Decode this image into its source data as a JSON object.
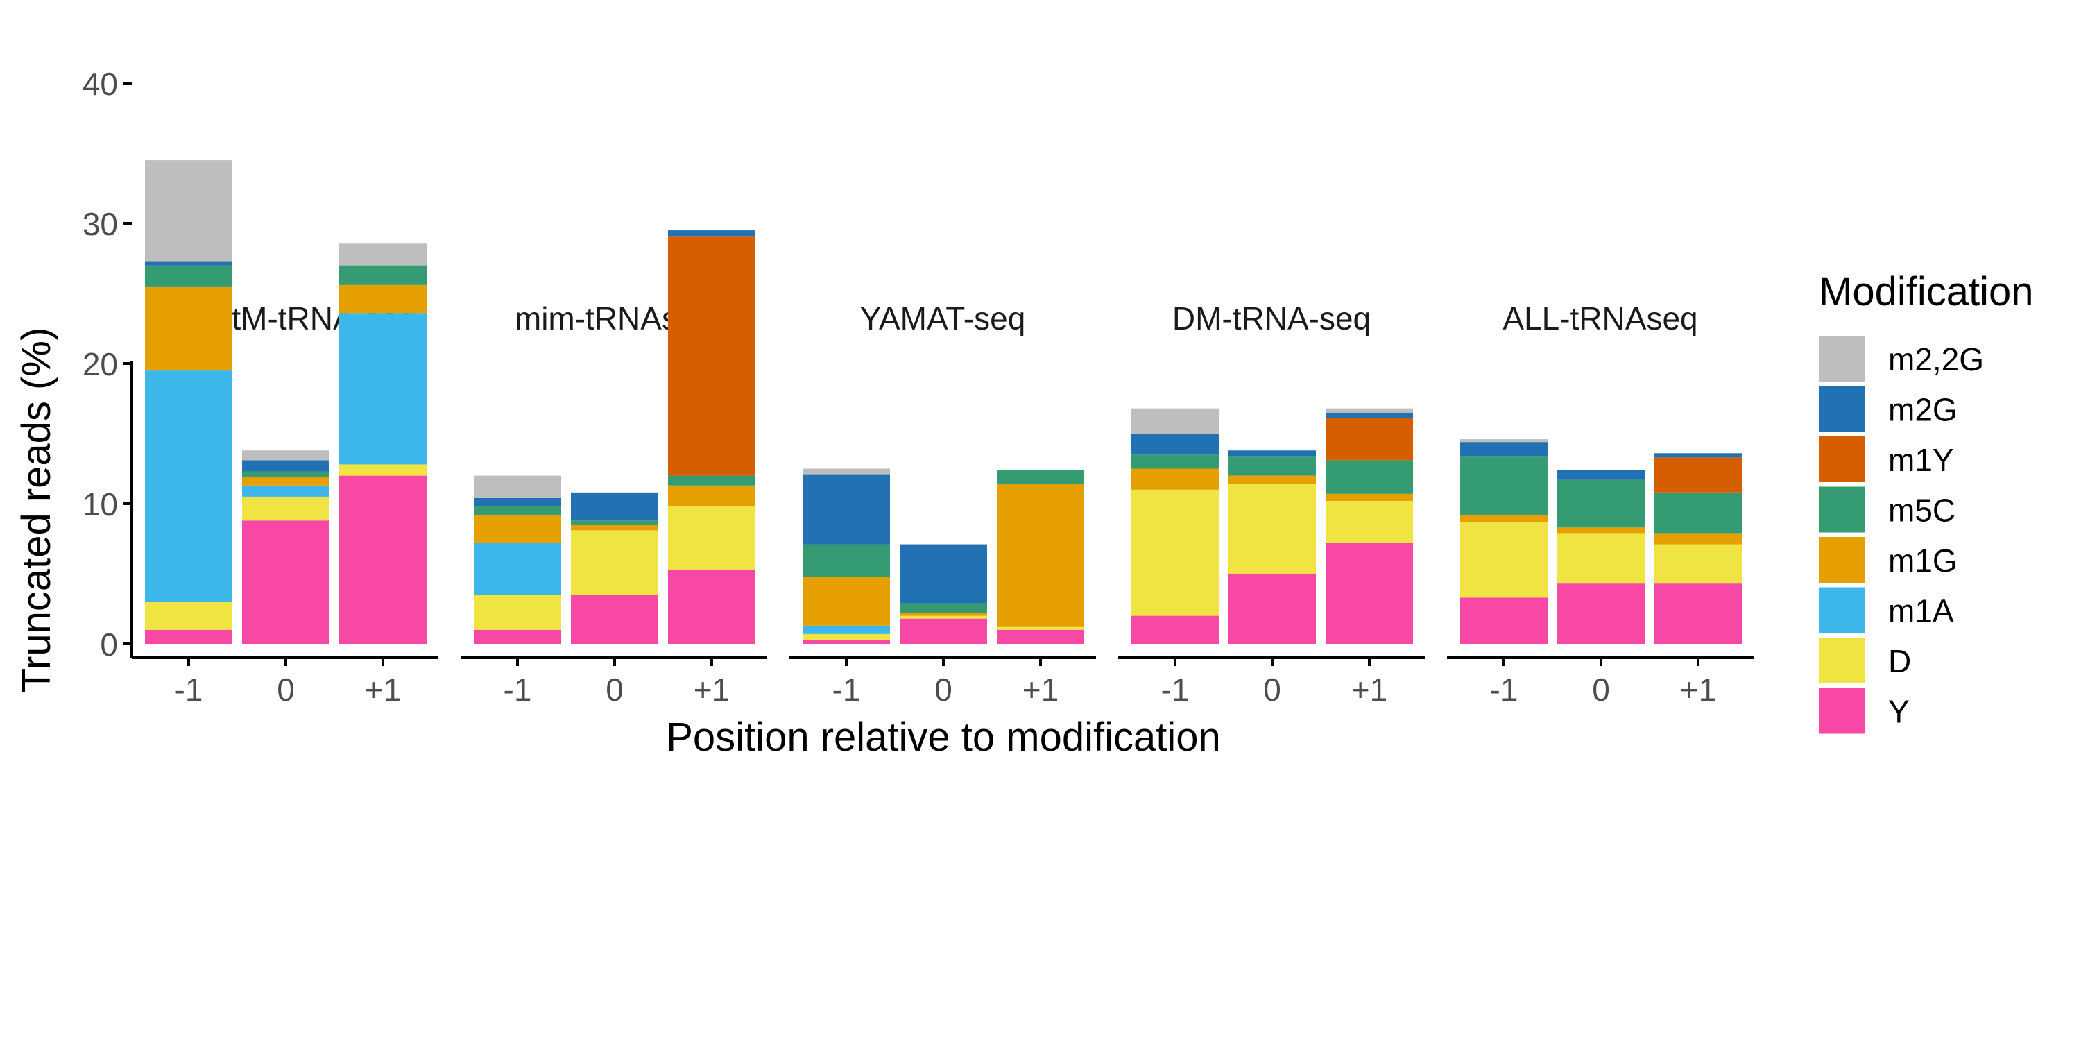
{
  "chart_data": {
    "type": "bar",
    "stacked": true,
    "faceted": true,
    "xlabel": "Position relative to modification",
    "ylabel": "Truncated reads (%)",
    "ylim": [
      0,
      40
    ],
    "yticks": [
      0,
      10,
      20,
      30,
      40
    ],
    "categories": [
      "-1",
      "0",
      "+1"
    ],
    "grid": false,
    "legend": {
      "title": "Modification",
      "placement": "right",
      "entries": [
        "m2,2G",
        "m2G",
        "m1Y",
        "m5C",
        "m1G",
        "m1A",
        "D",
        "Y"
      ]
    },
    "colors": {
      "m2,2G": "#BEBEBE",
      "m2G": "#2271B2",
      "m1Y": "#D55E00",
      "m5C": "#359B73",
      "m1G": "#E69F00",
      "m1A": "#3DB7E9",
      "D": "#F0E442",
      "Y": "#F748A5"
    },
    "stack_order": [
      "Y",
      "D",
      "m1A",
      "m1G",
      "m5C",
      "m1Y",
      "m2G",
      "m2,2G"
    ],
    "panels": [
      {
        "title": "QuantM-tRNA-seq",
        "bars": [
          {
            "category": "-1",
            "values": {
              "Y": 1.0,
              "D": 2.0,
              "m1A": 16.5,
              "m1G": 6.0,
              "m5C": 1.5,
              "m1Y": 0.0,
              "m2G": 0.3,
              "m2,2G": 7.2
            }
          },
          {
            "category": "0",
            "values": {
              "Y": 8.8,
              "D": 1.7,
              "m1A": 0.8,
              "m1G": 0.6,
              "m5C": 0.4,
              "m1Y": 0.0,
              "m2G": 0.8,
              "m2,2G": 0.7
            }
          },
          {
            "category": "+1",
            "values": {
              "Y": 12.0,
              "D": 0.8,
              "m1A": 10.8,
              "m1G": 2.0,
              "m5C": 1.4,
              "m1Y": 0.0,
              "m2G": 0.0,
              "m2,2G": 1.6
            }
          }
        ]
      },
      {
        "title": "mim-tRNAseq",
        "bars": [
          {
            "category": "-1",
            "values": {
              "Y": 1.0,
              "D": 2.5,
              "m1A": 3.7,
              "m1G": 2.0,
              "m5C": 0.6,
              "m1Y": 0.0,
              "m2G": 0.6,
              "m2,2G": 1.6
            }
          },
          {
            "category": "0",
            "values": {
              "Y": 3.5,
              "D": 4.6,
              "m1A": 0.0,
              "m1G": 0.4,
              "m5C": 0.3,
              "m1Y": 0.0,
              "m2G": 2.0,
              "m2,2G": 0.0
            }
          },
          {
            "category": "+1",
            "values": {
              "Y": 5.3,
              "D": 4.5,
              "m1A": 0.0,
              "m1G": 1.5,
              "m5C": 0.7,
              "m1Y": 17.1,
              "m2G": 0.4,
              "m2,2G": 0.0
            }
          }
        ]
      },
      {
        "title": "YAMAT-seq",
        "bars": [
          {
            "category": "-1",
            "values": {
              "Y": 0.3,
              "D": 0.4,
              "m1A": 0.6,
              "m1G": 3.5,
              "m5C": 2.3,
              "m1Y": 0.0,
              "m2G": 5.0,
              "m2,2G": 0.4
            }
          },
          {
            "category": "0",
            "values": {
              "Y": 1.8,
              "D": 0.2,
              "m1A": 0.0,
              "m1G": 0.2,
              "m5C": 0.7,
              "m1Y": 0.0,
              "m2G": 4.2,
              "m2,2G": 0.0
            }
          },
          {
            "category": "+1",
            "values": {
              "Y": 1.0,
              "D": 0.2,
              "m1A": 0.0,
              "m1G": 10.2,
              "m5C": 1.0,
              "m1Y": 0.0,
              "m2G": 0.0,
              "m2,2G": 0.0
            }
          }
        ]
      },
      {
        "title": "DM-tRNA-seq",
        "bars": [
          {
            "category": "-1",
            "values": {
              "Y": 2.0,
              "D": 9.0,
              "m1A": 0.0,
              "m1G": 1.5,
              "m5C": 1.0,
              "m1Y": 0.0,
              "m2G": 1.5,
              "m2,2G": 1.8
            }
          },
          {
            "category": "0",
            "values": {
              "Y": 5.0,
              "D": 6.4,
              "m1A": 0.0,
              "m1G": 0.6,
              "m5C": 1.4,
              "m1Y": 0.0,
              "m2G": 0.4,
              "m2,2G": 0.0
            }
          },
          {
            "category": "+1",
            "values": {
              "Y": 7.2,
              "D": 3.0,
              "m1A": 0.0,
              "m1G": 0.5,
              "m5C": 2.4,
              "m1Y": 3.0,
              "m2G": 0.4,
              "m2,2G": 0.3
            }
          }
        ]
      },
      {
        "title": "ALL-tRNAseq",
        "bars": [
          {
            "category": "-1",
            "values": {
              "Y": 3.3,
              "D": 5.4,
              "m1A": 0.0,
              "m1G": 0.5,
              "m5C": 4.2,
              "m1Y": 0.0,
              "m2G": 1.0,
              "m2,2G": 0.2
            }
          },
          {
            "category": "0",
            "values": {
              "Y": 4.3,
              "D": 3.6,
              "m1A": 0.0,
              "m1G": 0.4,
              "m5C": 3.4,
              "m1Y": 0.0,
              "m2G": 0.7,
              "m2,2G": 0.0
            }
          },
          {
            "category": "+1",
            "values": {
              "Y": 4.3,
              "D": 2.8,
              "m1A": 0.0,
              "m1G": 0.8,
              "m5C": 2.9,
              "m1Y": 2.5,
              "m2G": 0.3,
              "m2,2G": 0.0
            }
          }
        ]
      }
    ]
  }
}
